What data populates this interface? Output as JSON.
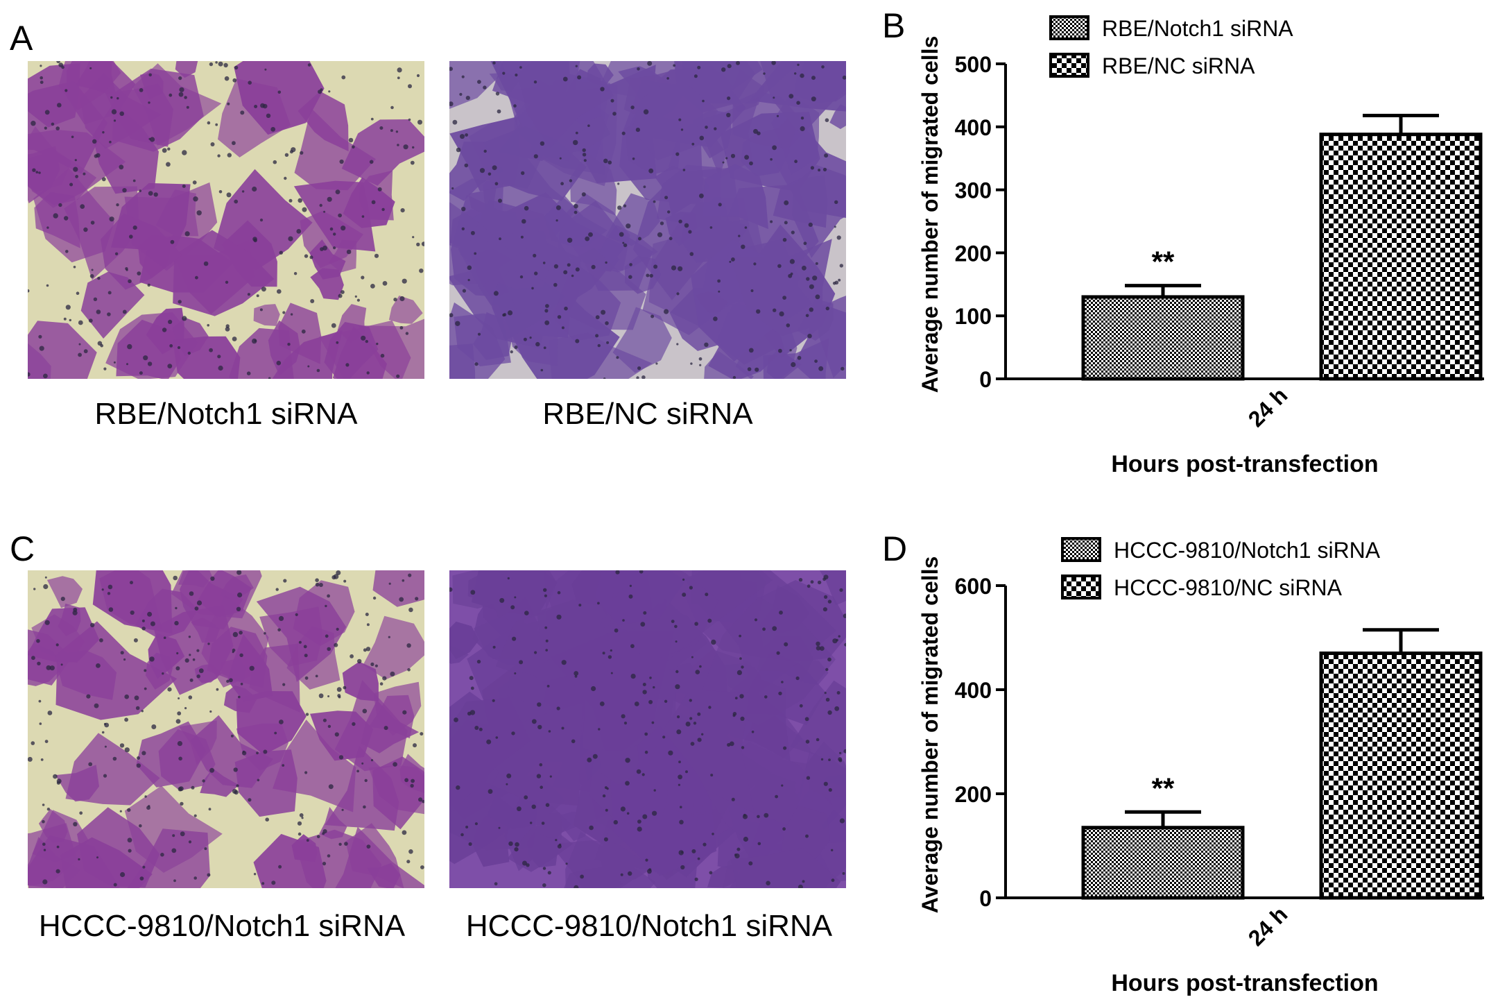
{
  "figure": {
    "panel_a": {
      "letter": "A"
    },
    "panel_b": {
      "letter": "B"
    },
    "panel_c": {
      "letter": "C"
    },
    "panel_d": {
      "letter": "D"
    },
    "images": {
      "a_left_caption": "RBE/Notch1 siRNA",
      "a_right_caption": "RBE/NC siRNA",
      "c_left_caption": "HCCC-9810/Notch1 siRNA",
      "c_right_caption": "HCCC-9810/Notch1 siRNA"
    },
    "colors": {
      "stain_purple": "#8a3f9a",
      "stain_violet": "#6c4aa0",
      "background_beige": "#dcd9b2",
      "bar_fill": "#000000"
    }
  },
  "chart_data": [
    {
      "type": "bar",
      "panel": "B",
      "categories": [
        "24 h"
      ],
      "series": [
        {
          "name": "RBE/Notch1 siRNA",
          "values": [
            130
          ],
          "error": [
            18
          ],
          "pattern": "fine-checker",
          "annotation": "**"
        },
        {
          "name": "RBE/NC siRNA",
          "values": [
            388
          ],
          "error": [
            30
          ],
          "pattern": "coarse-checker",
          "annotation": ""
        }
      ],
      "xlabel": "Hours post-transfection",
      "ylabel": "Average number of migrated cells",
      "ylim": [
        0,
        500
      ],
      "yticks": [
        0,
        100,
        200,
        300,
        400,
        500
      ],
      "legend": "top",
      "grid": false
    },
    {
      "type": "bar",
      "panel": "D",
      "categories": [
        "24 h"
      ],
      "series": [
        {
          "name": "HCCC-9810/Notch1 siRNA",
          "values": [
            135
          ],
          "error": [
            30
          ],
          "pattern": "fine-checker",
          "annotation": "**"
        },
        {
          "name": "HCCC-9810/NC siRNA",
          "values": [
            470
          ],
          "error": [
            45
          ],
          "pattern": "coarse-checker",
          "annotation": ""
        }
      ],
      "xlabel": "Hours post-transfection",
      "ylabel": "Average number of migrated cells",
      "ylim": [
        0,
        600
      ],
      "yticks": [
        0,
        200,
        400,
        600
      ],
      "legend": "top",
      "grid": false
    }
  ]
}
